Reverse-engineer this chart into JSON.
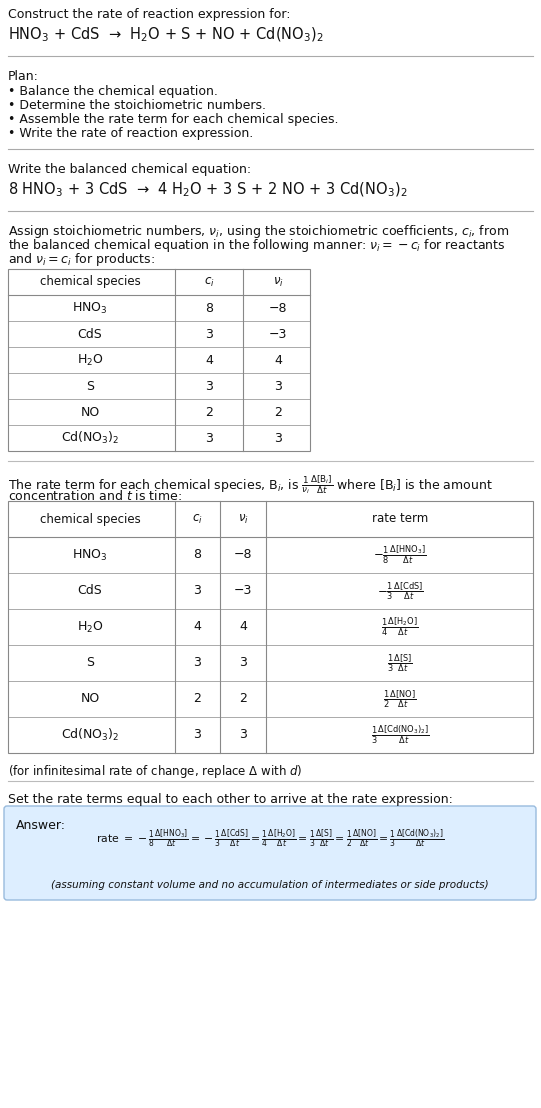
{
  "bg_color": "#ffffff",
  "text_color": "#111111",
  "font_size": 9.0,
  "sections": {
    "s1_line1": "Construct the rate of reaction expression for:",
    "s1_line2": "HNO$_3$ + CdS  →  H$_2$O + S + NO + Cd(NO$_3$)$_2$",
    "plan_header": "Plan:",
    "plan_items": [
      "• Balance the chemical equation.",
      "• Determine the stoichiometric numbers.",
      "• Assemble the rate term for each chemical species.",
      "• Write the rate of reaction expression."
    ],
    "balanced_header": "Write the balanced chemical equation:",
    "balanced_eq": "8 HNO$_3$ + 3 CdS  →  4 H$_2$O + 3 S + 2 NO + 3 Cd(NO$_3$)$_2$",
    "stoich_intro": [
      "Assign stoichiometric numbers, $\\nu_i$, using the stoichiometric coefficients, $c_i$, from",
      "the balanced chemical equation in the following manner: $\\nu_i = -c_i$ for reactants",
      "and $\\nu_i = c_i$ for products:"
    ],
    "table1_headers": [
      "chemical species",
      "$c_i$",
      "$\\nu_i$"
    ],
    "table1_data": [
      [
        "HNO$_3$",
        "8",
        "−8"
      ],
      [
        "CdS",
        "3",
        "−3"
      ],
      [
        "H$_2$O",
        "4",
        "4"
      ],
      [
        "S",
        "3",
        "3"
      ],
      [
        "NO",
        "2",
        "2"
      ],
      [
        "Cd(NO$_3$)$_2$",
        "3",
        "3"
      ]
    ],
    "rate_intro1": "The rate term for each chemical species, B$_i$, is $\\frac{1}{\\nu_i}\\frac{\\Delta[\\mathrm{B}_i]}{\\Delta t}$ where [B$_i$] is the amount",
    "rate_intro2": "concentration and $t$ is time:",
    "table2_headers": [
      "chemical species",
      "$c_i$",
      "$\\nu_i$",
      "rate term"
    ],
    "table2_data": [
      [
        "HNO$_3$",
        "8",
        "−8",
        "$-\\frac{1}{8}\\frac{\\Delta[\\mathrm{HNO_3}]}{\\Delta t}$"
      ],
      [
        "CdS",
        "3",
        "−3",
        "$-\\frac{1}{3}\\frac{\\Delta[\\mathrm{CdS}]}{\\Delta t}$"
      ],
      [
        "H$_2$O",
        "4",
        "4",
        "$\\frac{1}{4}\\frac{\\Delta[\\mathrm{H_2O}]}{\\Delta t}$"
      ],
      [
        "S",
        "3",
        "3",
        "$\\frac{1}{3}\\frac{\\Delta[\\mathrm{S}]}{\\Delta t}$"
      ],
      [
        "NO",
        "2",
        "2",
        "$\\frac{1}{2}\\frac{\\Delta[\\mathrm{NO}]}{\\Delta t}$"
      ],
      [
        "Cd(NO$_3$)$_2$",
        "3",
        "3",
        "$\\frac{1}{3}\\frac{\\Delta[\\mathrm{Cd(NO_3)_2}]}{\\Delta t}$"
      ]
    ],
    "delta_note": "(for infinitesimal rate of change, replace Δ with $d$)",
    "answer_intro": "Set the rate terms equal to each other to arrive at the rate expression:",
    "answer_label": "Answer:",
    "answer_rate_parts": [
      "rate $= -\\frac{1}{8}\\frac{\\Delta[\\mathrm{HNO_3}]}{\\Delta t}$",
      "$= -\\frac{1}{3}\\frac{\\Delta[\\mathrm{CdS}]}{\\Delta t}$",
      "$= \\frac{1}{4}\\frac{\\Delta[\\mathrm{H_2O}]}{\\Delta t}$",
      "$= \\frac{1}{3}\\frac{\\Delta[\\mathrm{S}]}{\\Delta t}$",
      "$= \\frac{1}{2}\\frac{\\Delta[\\mathrm{NO}]}{\\Delta t}$",
      "$= \\frac{1}{3}\\frac{\\Delta[\\mathrm{Cd(NO_3)_2}]}{\\Delta t}$"
    ],
    "answer_note": "(assuming constant volume and no accumulation of intermediates or side products)"
  }
}
